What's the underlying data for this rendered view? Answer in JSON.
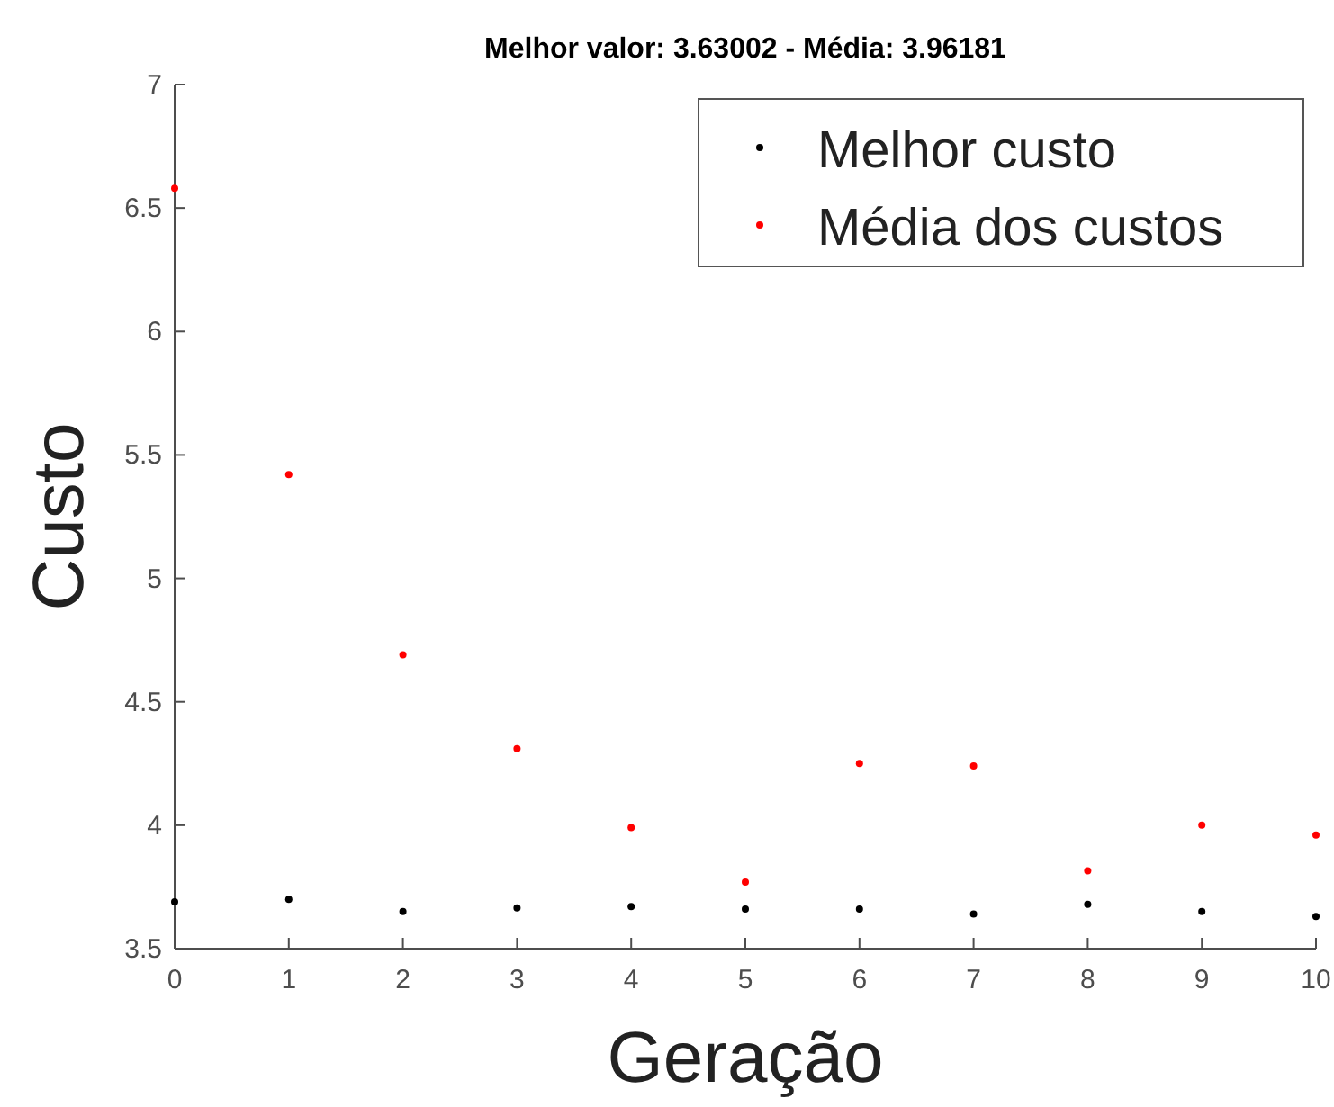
{
  "chart_data": {
    "type": "scatter",
    "title": "Melhor valor: 3.63002 - Média: 3.96181",
    "xlabel": "Geração",
    "ylabel": "Custo",
    "x": [
      0,
      1,
      2,
      3,
      4,
      5,
      6,
      7,
      8,
      9,
      10
    ],
    "series": [
      {
        "name": "Melhor custo",
        "color": "#000000",
        "values": [
          3.69,
          3.7,
          3.65,
          3.665,
          3.67,
          3.66,
          3.66,
          3.64,
          3.68,
          3.65,
          3.63
        ]
      },
      {
        "name": "Média dos custos",
        "color": "#ff0000",
        "values": [
          6.58,
          5.42,
          4.69,
          4.31,
          3.99,
          3.77,
          4.25,
          4.24,
          3.815,
          4.0,
          3.96
        ]
      }
    ],
    "xlim": [
      0,
      10
    ],
    "xticks": [
      0,
      1,
      2,
      3,
      4,
      5,
      6,
      7,
      8,
      9,
      10
    ],
    "ylim": [
      3.5,
      7
    ],
    "yticks": [
      3.5,
      4,
      4.5,
      5,
      5.5,
      6,
      6.5,
      7
    ],
    "legend": "top right",
    "marker": "circle",
    "grid": false
  }
}
